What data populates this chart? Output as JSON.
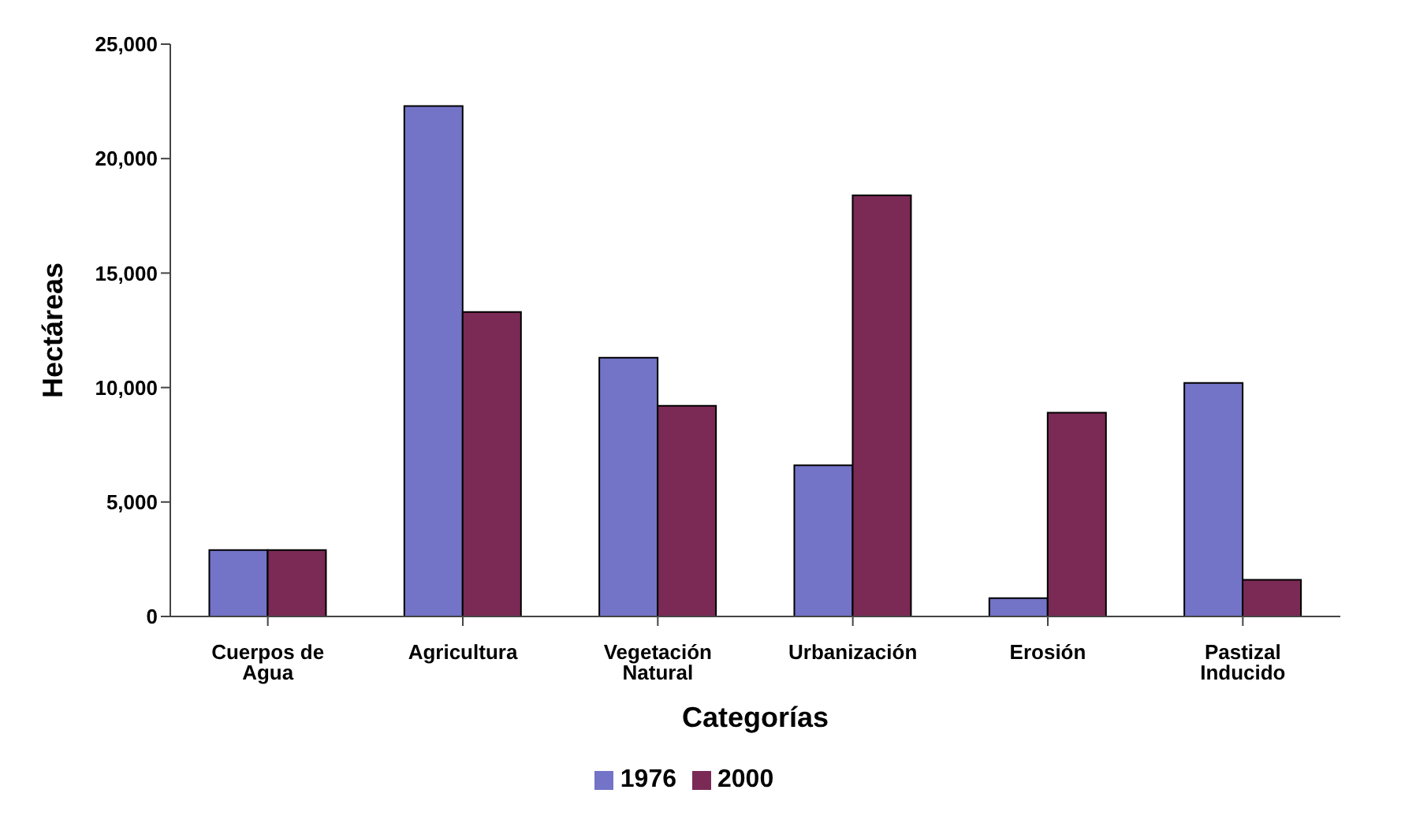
{
  "chart_data": {
    "type": "bar",
    "xlabel": "Categorías",
    "ylabel": "Hectáreas",
    "categories": [
      "Cuerpos de Agua",
      "Agricultura",
      "Vegetación Natural",
      "Urbanización",
      "Erosión",
      "Pastizal Inducido"
    ],
    "series": [
      {
        "name": "1976",
        "color": "#7373c8",
        "values": [
          2900,
          22300,
          11300,
          6600,
          800,
          10200
        ]
      },
      {
        "name": "2000",
        "color": "#7a2a55",
        "values": [
          2900,
          13300,
          9200,
          18400,
          8900,
          1600
        ]
      }
    ],
    "ylim": [
      0,
      25000
    ],
    "yticks": [
      {
        "value": 0,
        "label": "0"
      },
      {
        "value": 5000,
        "label": "5,000"
      },
      {
        "value": 10000,
        "label": "10,000"
      },
      {
        "value": 15000,
        "label": "15,000"
      },
      {
        "value": 20000,
        "label": "20,000"
      },
      {
        "value": 25000,
        "label": "25,000"
      }
    ],
    "grid": false,
    "legend": "bottom"
  }
}
